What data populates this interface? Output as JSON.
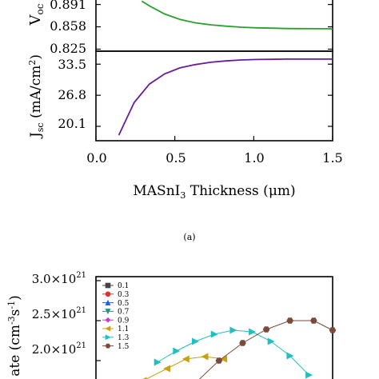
{
  "caption_a": "(a)",
  "chart_data": [
    {
      "type": "line",
      "panel": "voc",
      "ylabel": "V_oc",
      "y_tick_labels": [
        "0.891",
        "0.858",
        "0.825"
      ],
      "y_ticks": [
        0.891,
        0.858,
        0.825
      ],
      "ylim": [
        0.822,
        0.9
      ],
      "xlim": [
        -0.05,
        1.5
      ],
      "series_color": "#2ca02c",
      "x": [
        0.25,
        0.3,
        0.4,
        0.5,
        0.6,
        0.7,
        0.8,
        0.9,
        1.0,
        1.1,
        1.2,
        1.3,
        1.4,
        1.5
      ],
      "y": [
        0.896,
        0.889,
        0.877,
        0.869,
        0.864,
        0.861,
        0.859,
        0.8575,
        0.8565,
        0.856,
        0.8555,
        0.8553,
        0.8552,
        0.8551
      ]
    },
    {
      "type": "line",
      "panel": "jsc",
      "ylabel": "J_sc (mA/cm²)",
      "y_tick_labels": [
        "33.5",
        "26.8",
        "20.1"
      ],
      "y_ticks": [
        33.5,
        26.8,
        20.1
      ],
      "x_tick_labels": [
        "0.0",
        "0.5",
        "1.0",
        "1.5"
      ],
      "x_ticks": [
        0.0,
        0.5,
        1.0,
        1.5
      ],
      "xlabel": "MASnI3 Thickness (μm)",
      "ylim": [
        17.0,
        36.3
      ],
      "xlim": [
        -0.05,
        1.5
      ],
      "series_color": "#6a1b9a",
      "x": [
        0.1,
        0.2,
        0.3,
        0.4,
        0.5,
        0.6,
        0.7,
        0.8,
        0.9,
        1.0,
        1.1,
        1.2,
        1.3,
        1.4,
        1.5
      ],
      "y": [
        18.2,
        25.2,
        29.2,
        31.4,
        32.7,
        33.4,
        33.9,
        34.2,
        34.4,
        34.5,
        34.55,
        34.6,
        34.6,
        34.6,
        34.6
      ]
    },
    {
      "type": "line",
      "panel": "rate",
      "ylabel": "ate (cm⁻³s⁻¹)",
      "y_tick_labels": [
        "3.0×10²¹",
        "2.5×10²¹",
        "2.0×10²¹"
      ],
      "y_ticks": [
        3.0,
        2.5,
        2.0
      ],
      "ylim": [
        1.65,
        3.05
      ],
      "xlim": [
        0,
        1
      ],
      "legend": [
        "0.1",
        "0.3",
        "0.5",
        "0.7",
        "0.9",
        "1.1",
        "1.3",
        "1.5"
      ],
      "legend_colors": [
        "#444444",
        "#e03030",
        "#2060d0",
        "#10a080",
        "#c040d0",
        "#c8a010",
        "#20c0c0",
        "#7a4a3a"
      ],
      "legend_markers": [
        "square",
        "circle",
        "triangle-up",
        "triangle-down",
        "diamond",
        "triangle-left",
        "triangle-right",
        "hexagon"
      ],
      "series": [
        {
          "name": "1.1",
          "x": [
            0.2,
            0.3,
            0.38,
            0.46,
            0.54
          ],
          "y": [
            1.75,
            1.9,
            2.02,
            2.05,
            2.02
          ]
        },
        {
          "name": "1.3",
          "x": [
            0.26,
            0.34,
            0.42,
            0.5,
            0.58,
            0.66,
            0.74,
            0.82,
            0.9
          ],
          "y": [
            1.98,
            2.12,
            2.24,
            2.33,
            2.38,
            2.36,
            2.24,
            2.06,
            1.82
          ]
        },
        {
          "name": "1.5",
          "x": [
            0.42,
            0.52,
            0.62,
            0.72,
            0.82,
            0.92,
            1.0
          ],
          "y": [
            1.72,
            2.0,
            2.22,
            2.39,
            2.5,
            2.5,
            2.38
          ]
        }
      ]
    }
  ]
}
